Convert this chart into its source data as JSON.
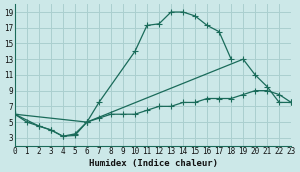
{
  "xlabel": "Humidex (Indice chaleur)",
  "bg_color": "#cce8e8",
  "grid_color": "#aacfcf",
  "line_color": "#1a6b5a",
  "xlim": [
    0,
    23
  ],
  "ylim": [
    2,
    20
  ],
  "xticks": [
    0,
    1,
    2,
    3,
    4,
    5,
    6,
    7,
    8,
    9,
    10,
    11,
    12,
    13,
    14,
    15,
    16,
    17,
    18,
    19,
    20,
    21,
    22,
    23
  ],
  "yticks": [
    3,
    5,
    7,
    9,
    11,
    13,
    15,
    17,
    19
  ],
  "curve1_x": [
    0,
    1,
    2,
    3,
    4,
    5,
    6,
    7,
    10,
    11,
    12,
    13,
    14,
    15,
    16,
    17,
    18
  ],
  "curve1_y": [
    6,
    5,
    4.5,
    4,
    3.2,
    3.3,
    5,
    7.5,
    14,
    17.3,
    17.5,
    19,
    19,
    18.5,
    17.3,
    16.5,
    13
  ],
  "curve2_x": [
    0,
    2,
    3,
    4,
    5,
    6,
    19,
    20,
    21,
    22,
    23
  ],
  "curve2_y": [
    6,
    4.5,
    4,
    3.2,
    3.5,
    5,
    13,
    11,
    9.5,
    7.5,
    7.5
  ],
  "curve3_x": [
    0,
    6,
    7,
    8,
    9,
    10,
    11,
    12,
    13,
    14,
    15,
    16,
    17,
    18,
    19,
    20,
    21,
    22,
    23
  ],
  "curve3_y": [
    6,
    5,
    5.5,
    6,
    6,
    6,
    6.5,
    7,
    7,
    7.5,
    7.5,
    8,
    8,
    8,
    8.5,
    9,
    9,
    8.5,
    7.5
  ]
}
